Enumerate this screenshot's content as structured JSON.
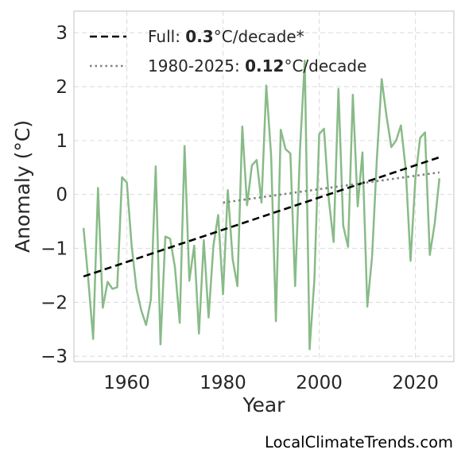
{
  "chart_data": {
    "type": "line",
    "xlabel": "Year",
    "ylabel": "Anomaly (°C)",
    "xlim": [
      1949,
      2028
    ],
    "ylim": [
      -3.1,
      3.4
    ],
    "xticks": [
      1960,
      1980,
      2000,
      2020
    ],
    "yticks": [
      -3,
      -2,
      -1,
      0,
      1,
      2,
      3
    ],
    "ytick_labels": [
      "−3",
      "−2",
      "−1",
      "0",
      "1",
      "2",
      "3"
    ],
    "grid": true,
    "legend_placement": "top-left",
    "series": [
      {
        "kind": "observed",
        "color": "#88bb88",
        "style": "solid",
        "x": [
          1951,
          1952,
          1953,
          1954,
          1955,
          1956,
          1957,
          1958,
          1959,
          1960,
          1961,
          1962,
          1963,
          1964,
          1965,
          1966,
          1967,
          1968,
          1969,
          1970,
          1971,
          1972,
          1973,
          1974,
          1975,
          1976,
          1977,
          1978,
          1979,
          1980,
          1981,
          1982,
          1983,
          1984,
          1985,
          1986,
          1987,
          1988,
          1989,
          1990,
          1991,
          1992,
          1993,
          1994,
          1995,
          1996,
          1997,
          1998,
          1999,
          2000,
          2001,
          2002,
          2003,
          2004,
          2005,
          2006,
          2007,
          2008,
          2009,
          2010,
          2011,
          2012,
          2013,
          2014,
          2015,
          2016,
          2017,
          2018,
          2019,
          2020,
          2021,
          2022,
          2023,
          2024,
          2025
        ],
        "y": [
          -0.62,
          -1.6,
          -2.68,
          0.12,
          -2.1,
          -1.62,
          -1.75,
          -1.72,
          0.32,
          0.22,
          -0.95,
          -1.75,
          -2.15,
          -2.42,
          -1.95,
          0.52,
          -2.78,
          -0.78,
          -0.82,
          -1.35,
          -2.38,
          0.9,
          -1.6,
          -0.95,
          -2.58,
          -0.85,
          -2.28,
          -0.95,
          -0.38,
          -1.85,
          0.08,
          -1.2,
          -1.7,
          1.26,
          -0.2,
          0.54,
          0.64,
          -0.15,
          2.02,
          0.72,
          -2.35,
          1.2,
          0.84,
          0.76,
          -1.7,
          0.82,
          2.48,
          -2.87,
          -1.58,
          1.12,
          1.22,
          -0.1,
          -0.88,
          1.96,
          -0.58,
          -0.97,
          1.85,
          -0.22,
          0.78,
          -2.08,
          -1.15,
          0.68,
          2.14,
          1.45,
          0.88,
          1.0,
          1.28,
          0.46,
          -1.23,
          0.3,
          1.05,
          1.15,
          -1.12,
          -0.55,
          0.3
        ]
      },
      {
        "kind": "trend-full",
        "color": "#000000",
        "style": "dashed",
        "x": [
          1951,
          2025
        ],
        "y": [
          -1.52,
          0.69
        ]
      },
      {
        "kind": "trend-recent",
        "color": "#808080",
        "style": "dotted",
        "x": [
          1980,
          2025
        ],
        "y": [
          -0.15,
          0.41
        ]
      }
    ]
  },
  "legend": [
    {
      "prefix": "Full: ",
      "bold": "0.3",
      "suffix": "°C/decade*",
      "color": "#000000",
      "style": "dashed"
    },
    {
      "prefix": "1980-2025: ",
      "bold": "0.12",
      "suffix": "°C/decade",
      "color": "#808080",
      "style": "dotted"
    }
  ],
  "watermark": "LocalClimateTrends.com"
}
